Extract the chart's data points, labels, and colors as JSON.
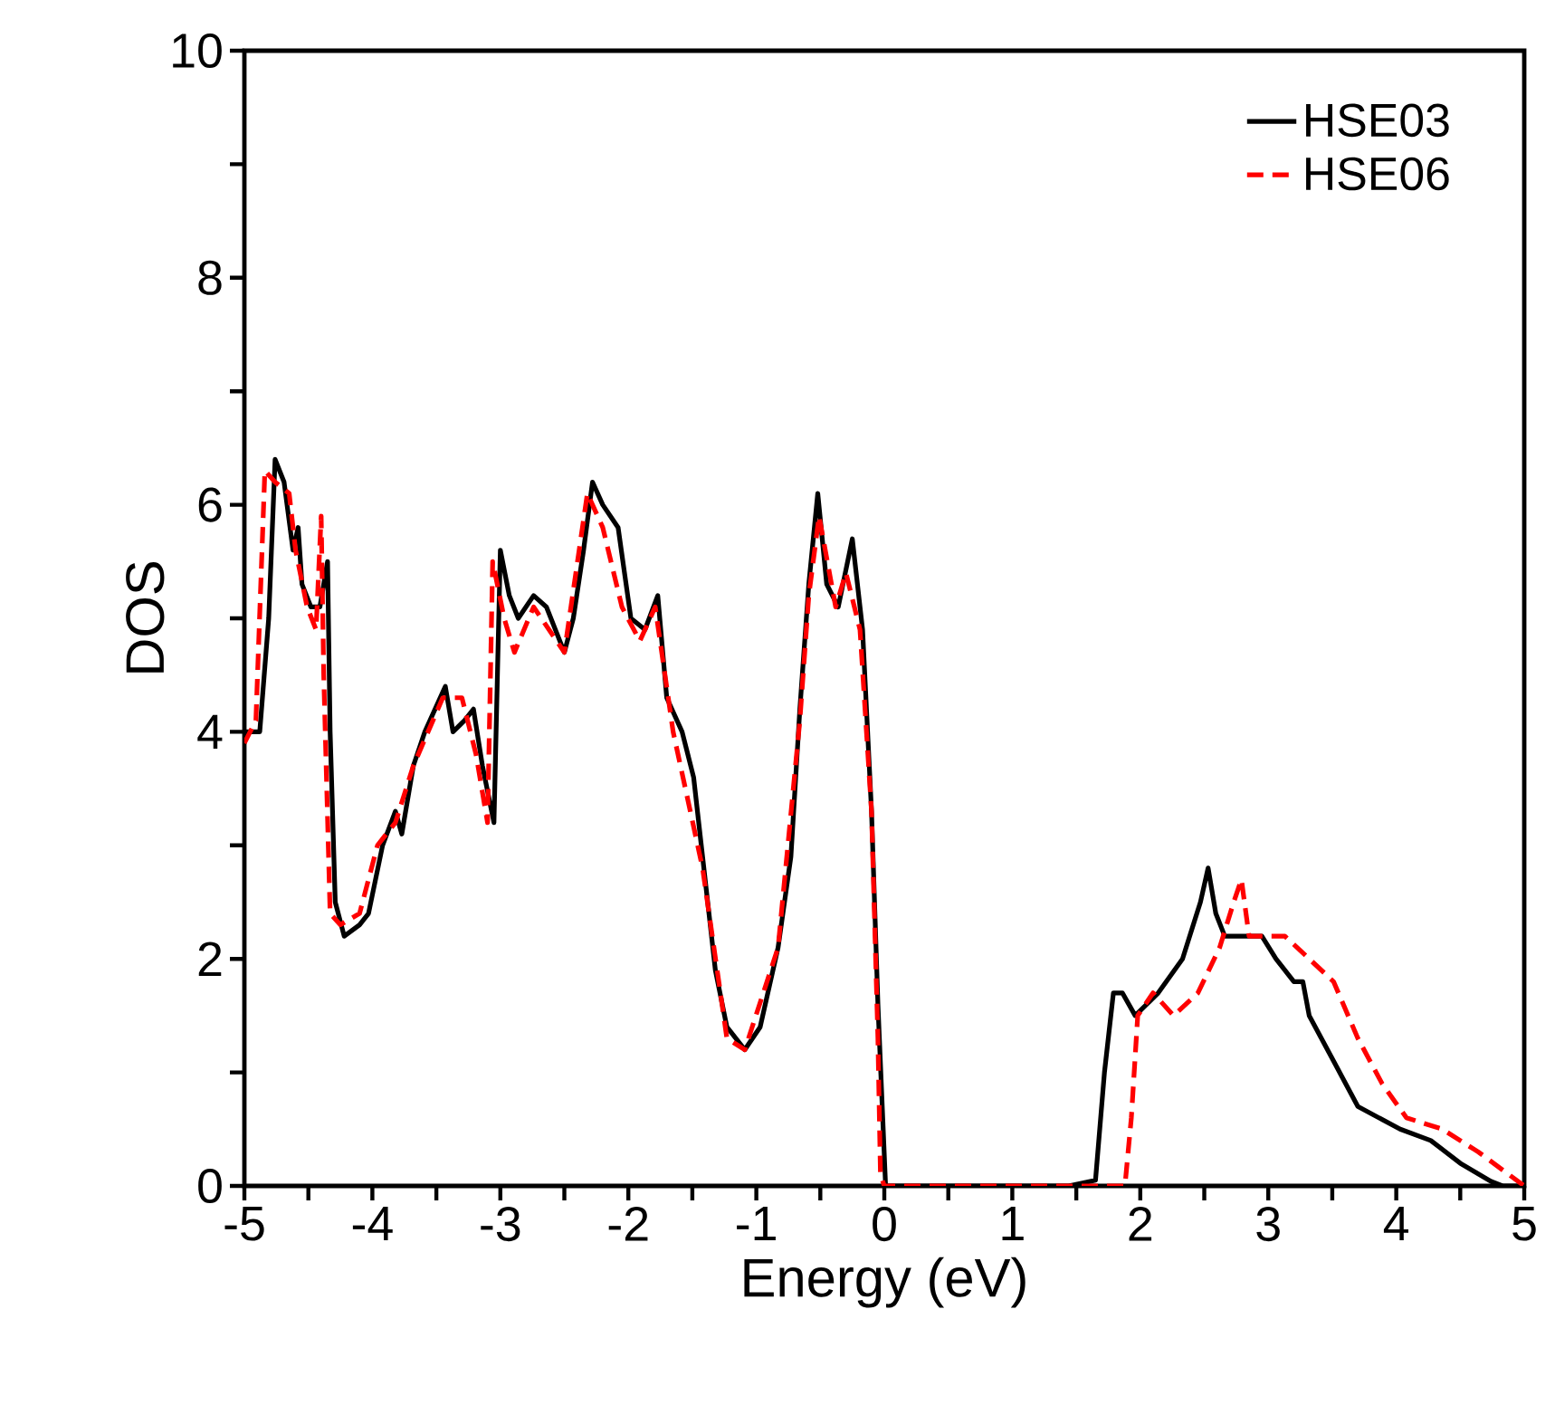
{
  "chart_data": {
    "type": "line",
    "xlabel": "Energy (eV)",
    "ylabel": "DOS",
    "xlim": [
      -5,
      5
    ],
    "ylim": [
      0,
      10
    ],
    "xticks": [
      -5,
      {
        "value": -4.5,
        "label": null
      },
      -4,
      {
        "value": -3.5,
        "label": null
      },
      -3,
      {
        "value": -2.5,
        "label": null
      },
      -2,
      {
        "value": -1.5,
        "label": null
      },
      -1,
      {
        "value": -0.5,
        "label": null
      },
      0,
      {
        "value": 0.5,
        "label": null
      },
      1,
      {
        "value": 1.5,
        "label": null
      },
      2,
      {
        "value": 2.5,
        "label": null
      },
      3,
      {
        "value": 3.5,
        "label": null
      },
      4,
      {
        "value": 4.5,
        "label": null
      },
      5
    ],
    "yticks": [
      0,
      {
        "value": 1,
        "label": null
      },
      2,
      {
        "value": 3,
        "label": null
      },
      4,
      {
        "value": 5,
        "label": null
      },
      6,
      {
        "value": 7,
        "label": null
      },
      8,
      {
        "value": 9,
        "label": null
      },
      10
    ],
    "legend": "top right",
    "grid": false,
    "marker": "none",
    "series": [
      {
        "name": "HSE03",
        "color": "#000000",
        "line_style": "solid",
        "x": [
          -5.0,
          -4.88,
          -4.81,
          -4.76,
          -4.69,
          -4.62,
          -4.58,
          -4.55,
          -4.48,
          -4.41,
          -4.35,
          -4.33,
          -4.29,
          -4.22,
          -4.1,
          -4.03,
          -3.92,
          -3.82,
          -3.77,
          -3.68,
          -3.59,
          -3.43,
          -3.37,
          -3.28,
          -3.21,
          -3.14,
          -3.05,
          -3.0,
          -2.93,
          -2.86,
          -2.74,
          -2.64,
          -2.5,
          -2.43,
          -2.35,
          -2.28,
          -2.2,
          -2.08,
          -1.98,
          -1.87,
          -1.77,
          -1.7,
          -1.58,
          -1.49,
          -1.42,
          -1.32,
          -1.23,
          -1.09,
          -0.97,
          -0.83,
          -0.73,
          -0.66,
          -0.59,
          -0.52,
          -0.45,
          -0.36,
          -0.25,
          -0.17,
          -0.1,
          -0.05,
          0.01,
          1.44,
          1.65,
          1.72,
          1.79,
          1.86,
          1.96,
          2.14,
          2.33,
          2.47,
          2.53,
          2.59,
          2.66,
          2.95,
          3.06,
          3.2,
          3.27,
          3.32,
          3.51,
          3.7,
          4.03,
          4.27,
          4.5,
          4.74,
          4.83,
          5.0
        ],
        "values": [
          4.0,
          4.0,
          5.0,
          6.4,
          6.2,
          5.6,
          5.8,
          5.3,
          5.1,
          5.1,
          5.5,
          4.0,
          2.5,
          2.2,
          2.3,
          2.4,
          3.0,
          3.3,
          3.1,
          3.7,
          4.0,
          4.4,
          4.0,
          4.1,
          4.2,
          3.7,
          3.2,
          5.6,
          5.2,
          5.0,
          5.2,
          5.1,
          4.7,
          5.0,
          5.6,
          6.2,
          6.0,
          5.8,
          5.0,
          4.9,
          5.2,
          4.3,
          4.0,
          3.6,
          2.9,
          1.9,
          1.4,
          1.2,
          1.4,
          2.1,
          2.9,
          4.2,
          5.3,
          6.1,
          5.3,
          5.1,
          5.7,
          4.9,
          3.3,
          1.6,
          0.0,
          0.0,
          0.05,
          1.0,
          1.7,
          1.7,
          1.5,
          1.7,
          2.0,
          2.5,
          2.8,
          2.4,
          2.2,
          2.2,
          2.0,
          1.8,
          1.8,
          1.5,
          1.1,
          0.7,
          0.5,
          0.4,
          0.2,
          0.04,
          0.0,
          0.0
        ]
      },
      {
        "name": "HSE06",
        "color": "#ff0000",
        "line_style": "dashed",
        "x": [
          -5.0,
          -4.91,
          -4.84,
          -4.76,
          -4.65,
          -4.6,
          -4.51,
          -4.44,
          -4.4,
          -4.38,
          -4.33,
          -4.25,
          -4.1,
          -3.96,
          -3.82,
          -3.68,
          -3.45,
          -3.3,
          -3.19,
          -3.1,
          -3.06,
          -2.97,
          -2.89,
          -2.74,
          -2.5,
          -2.32,
          -2.2,
          -2.05,
          -1.91,
          -1.79,
          -1.65,
          -1.42,
          -1.23,
          -1.09,
          -0.83,
          -0.66,
          -0.59,
          -0.51,
          -0.38,
          -0.3,
          -0.19,
          -0.1,
          -0.05,
          -0.03,
          0.0,
          1.88,
          1.93,
          1.98,
          2.1,
          2.26,
          2.45,
          2.62,
          2.73,
          2.79,
          2.85,
          3.13,
          3.32,
          3.51,
          3.7,
          3.89,
          4.08,
          4.36,
          4.64,
          5.0
        ],
        "values": [
          3.9,
          4.1,
          6.3,
          6.2,
          6.1,
          5.6,
          5.1,
          4.9,
          5.9,
          4.5,
          2.4,
          2.3,
          2.4,
          3.0,
          3.2,
          3.7,
          4.3,
          4.3,
          3.8,
          3.2,
          5.5,
          5.0,
          4.7,
          5.1,
          4.7,
          6.1,
          5.8,
          5.1,
          4.8,
          5.1,
          4.0,
          2.8,
          1.3,
          1.2,
          2.1,
          4.1,
          5.2,
          5.9,
          5.1,
          5.4,
          4.9,
          3.3,
          1.3,
          0.1,
          0.0,
          0.0,
          0.6,
          1.5,
          1.7,
          1.5,
          1.7,
          2.1,
          2.5,
          2.7,
          2.2,
          2.2,
          2.0,
          1.8,
          1.3,
          0.9,
          0.6,
          0.5,
          0.3,
          0.0
        ]
      }
    ]
  }
}
